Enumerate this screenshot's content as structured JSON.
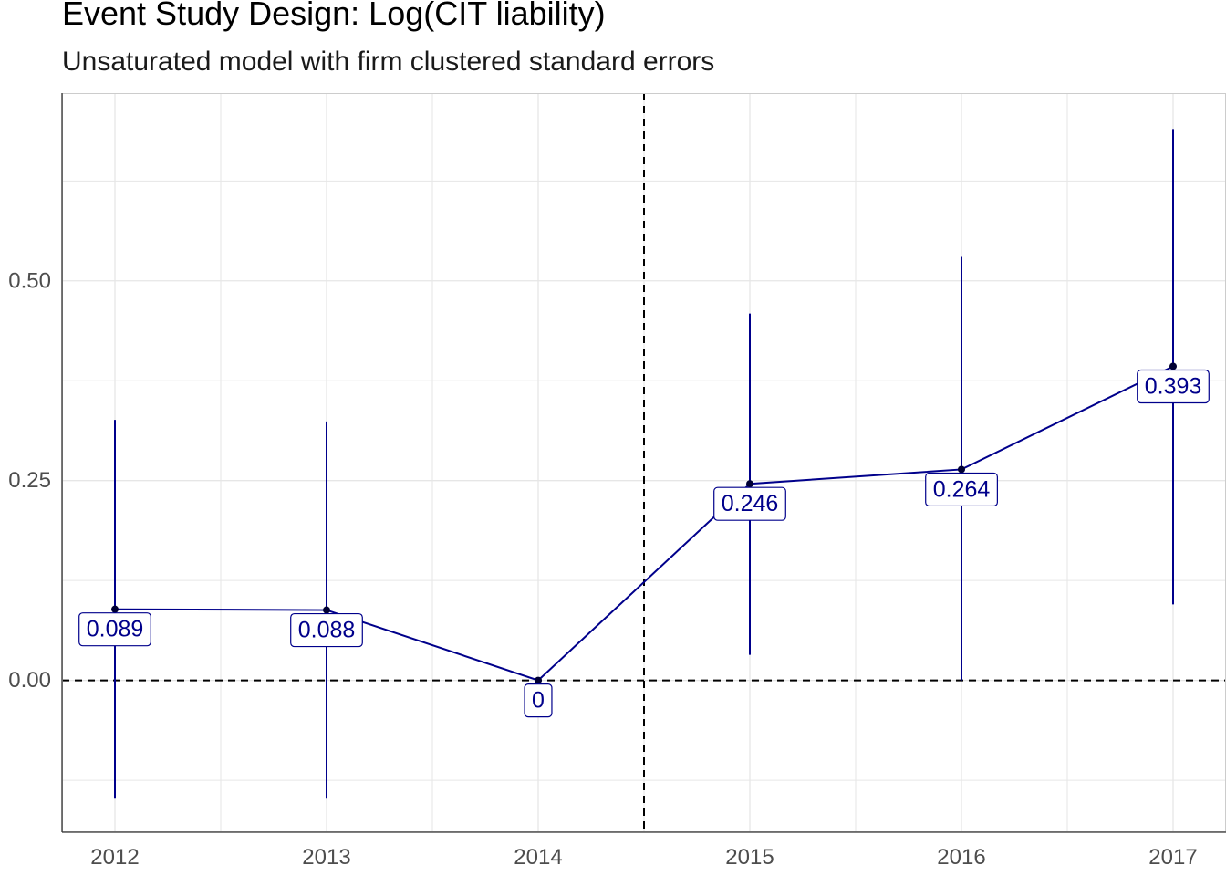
{
  "chart_data": {
    "type": "line",
    "title": "Event Study Design: Log(CIT liability)",
    "subtitle": "Unsaturated model with firm clustered standard errors",
    "xlabel": "",
    "ylabel": "",
    "x": [
      2012,
      2013,
      2014,
      2015,
      2016,
      2017
    ],
    "x_tick_labels": [
      "2012",
      "2013",
      "2014",
      "2015",
      "2016",
      "2017"
    ],
    "series": [
      {
        "values": [
          0.089,
          0.088,
          0,
          0.246,
          0.264,
          0.393
        ],
        "ci_lower": [
          -0.148,
          -0.148,
          0,
          0.032,
          0,
          0.095
        ],
        "ci_upper": [
          0.326,
          0.324,
          0,
          0.459,
          0.53,
          0.69
        ],
        "labels": [
          "0.089",
          "0.088",
          "0",
          "0.246",
          "0.264",
          "0.393"
        ]
      }
    ],
    "y_ticks": [
      0.0,
      0.25,
      0.5
    ],
    "y_tick_labels": [
      "0.00",
      "0.25",
      "0.50"
    ],
    "ylim": [
      -0.19,
      0.735
    ],
    "xlim": [
      2011.75,
      2017.25
    ],
    "reference_lines": {
      "horizontal_y": 0,
      "vertical_x": 2014.5,
      "style": "dashed"
    },
    "grid": true,
    "legend": "none",
    "colors": {
      "series": "#00008b",
      "grid": "#e6e6e6",
      "reference": "#000000"
    }
  }
}
